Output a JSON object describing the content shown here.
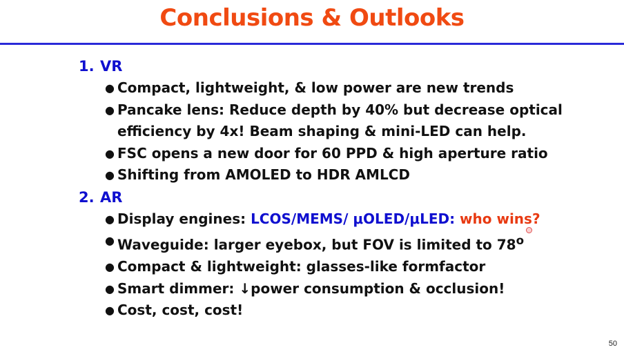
{
  "slide": {
    "title": "Conclusions & Outlooks",
    "page_number": "50"
  },
  "sections": [
    {
      "number": "1.",
      "heading": "VR",
      "bullets": [
        {
          "text": "Compact, lightweight, & low power are new trends"
        },
        {
          "line1": "Pancake lens: Reduce depth by 40% but decrease optical",
          "line2": "efficiency by 4x! Beam shaping & mini-LED can help."
        },
        {
          "text": "FSC opens a new door for 60 PPD & high aperture ratio"
        },
        {
          "text": "Shifting from AMOLED to HDR AMLCD"
        }
      ]
    },
    {
      "number": "2.",
      "heading": "AR",
      "bullets": [
        {
          "prefix": "Display engines: ",
          "highlight": "LCOS/MEMS/ μOLED/μLED:",
          "suffix": " who wins?"
        },
        {
          "text": "Waveguide: larger eyebox, but FOV is limited to 78",
          "sup": "o"
        },
        {
          "text": "Compact & lightweight: glasses-like formfactor"
        },
        {
          "prefix": "Smart dimmer: ",
          "arrow": "↓",
          "text": "power consumption & occlusion!"
        },
        {
          "text": "Cost, cost, cost!"
        }
      ]
    }
  ],
  "colors": {
    "title": "#f04a12",
    "rule": "#2a2ad8",
    "heading": "#0f0fcf",
    "magenta": "#ee1ee6",
    "orange": "#e83a12"
  }
}
